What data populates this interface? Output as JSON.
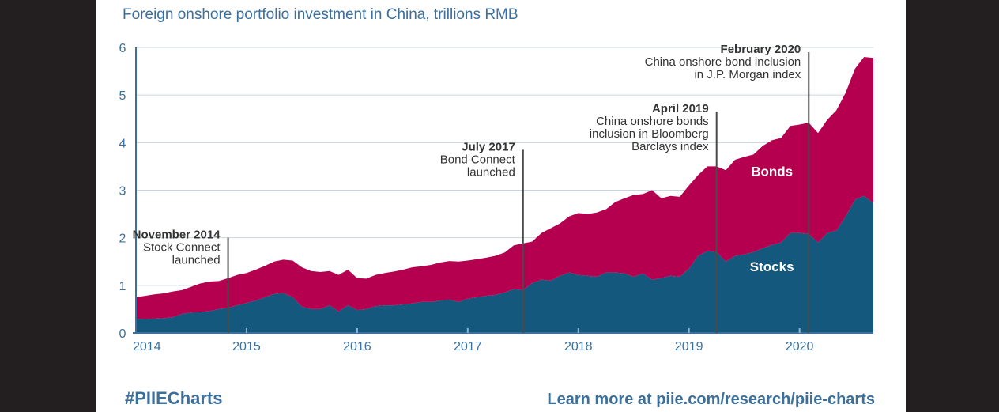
{
  "chart_data": {
    "type": "area",
    "title": "Foreign onshore portfolio investment in China, trillions RMB",
    "xlabel": "",
    "ylabel": "",
    "ylim": [
      0,
      6
    ],
    "yticks": [
      "0",
      "1",
      "2",
      "3",
      "4",
      "5",
      "6"
    ],
    "xticks": [
      "2014",
      "2015",
      "2016",
      "2017",
      "2018",
      "2019",
      "2020"
    ],
    "stacked": true,
    "x": [
      2014.0,
      2014.083,
      2014.167,
      2014.25,
      2014.333,
      2014.417,
      2014.5,
      2014.583,
      2014.667,
      2014.75,
      2014.833,
      2014.917,
      2015.0,
      2015.083,
      2015.167,
      2015.25,
      2015.333,
      2015.417,
      2015.5,
      2015.583,
      2015.667,
      2015.75,
      2015.833,
      2015.917,
      2016.0,
      2016.083,
      2016.167,
      2016.25,
      2016.333,
      2016.417,
      2016.5,
      2016.583,
      2016.667,
      2016.75,
      2016.833,
      2016.917,
      2017.0,
      2017.083,
      2017.167,
      2017.25,
      2017.333,
      2017.417,
      2017.5,
      2017.583,
      2017.667,
      2017.75,
      2017.833,
      2017.917,
      2018.0,
      2018.083,
      2018.167,
      2018.25,
      2018.333,
      2018.417,
      2018.5,
      2018.583,
      2018.667,
      2018.75,
      2018.833,
      2018.917,
      2019.0,
      2019.083,
      2019.167,
      2019.25,
      2019.333,
      2019.417,
      2019.5,
      2019.583,
      2019.667,
      2019.75,
      2019.833,
      2019.917,
      2020.0,
      2020.083,
      2020.167,
      2020.25,
      2020.333,
      2020.417,
      2020.5,
      2020.583,
      2020.667
    ],
    "series": [
      {
        "name": "Stocks",
        "color": "#14587e",
        "values": [
          0.3,
          0.29,
          0.3,
          0.31,
          0.33,
          0.4,
          0.43,
          0.44,
          0.46,
          0.5,
          0.53,
          0.58,
          0.63,
          0.68,
          0.75,
          0.82,
          0.84,
          0.75,
          0.55,
          0.5,
          0.5,
          0.58,
          0.45,
          0.58,
          0.48,
          0.5,
          0.56,
          0.58,
          0.58,
          0.6,
          0.62,
          0.65,
          0.65,
          0.68,
          0.7,
          0.65,
          0.72,
          0.75,
          0.78,
          0.8,
          0.85,
          0.92,
          0.9,
          1.05,
          1.12,
          1.1,
          1.2,
          1.27,
          1.22,
          1.2,
          1.18,
          1.27,
          1.27,
          1.25,
          1.18,
          1.25,
          1.12,
          1.15,
          1.2,
          1.18,
          1.35,
          1.62,
          1.72,
          1.7,
          1.5,
          1.62,
          1.65,
          1.7,
          1.78,
          1.85,
          1.9,
          2.1,
          2.1,
          2.08,
          1.9,
          2.1,
          2.15,
          2.45,
          2.8,
          2.88,
          2.73
        ]
      },
      {
        "name": "Bonds",
        "color": "#b50050",
        "values": [
          0.45,
          0.49,
          0.51,
          0.52,
          0.54,
          0.5,
          0.54,
          0.6,
          0.62,
          0.59,
          0.62,
          0.64,
          0.63,
          0.65,
          0.66,
          0.68,
          0.7,
          0.77,
          0.83,
          0.8,
          0.78,
          0.72,
          0.77,
          0.75,
          0.67,
          0.64,
          0.66,
          0.68,
          0.71,
          0.73,
          0.76,
          0.75,
          0.78,
          0.8,
          0.81,
          0.85,
          0.8,
          0.8,
          0.8,
          0.82,
          0.84,
          0.92,
          0.98,
          0.87,
          0.98,
          1.1,
          1.1,
          1.18,
          1.3,
          1.3,
          1.35,
          1.33,
          1.48,
          1.58,
          1.72,
          1.67,
          1.88,
          1.68,
          1.68,
          1.68,
          1.75,
          1.7,
          1.78,
          1.8,
          1.92,
          2.02,
          2.05,
          2.05,
          2.15,
          2.2,
          2.2,
          2.25,
          2.28,
          2.34,
          2.3,
          2.38,
          2.53,
          2.6,
          2.75,
          2.92,
          3.05
        ]
      }
    ],
    "series_labels": [
      {
        "text": "Stocks",
        "x": 2019.75,
        "y": 1.3
      },
      {
        "text": "Bonds",
        "x": 2019.75,
        "y": 3.3
      }
    ],
    "annotations": [
      {
        "x": 2014.833,
        "y_top": 2.0,
        "title": "November 2014",
        "lines": [
          "Stock Connect",
          "launched"
        ]
      },
      {
        "x": 2017.5,
        "y_top": 3.85,
        "title": "July 2017",
        "lines": [
          "Bond Connect",
          "launched"
        ]
      },
      {
        "x": 2019.25,
        "y_top": 4.65,
        "title": "April 2019",
        "lines": [
          "China onshore bonds",
          "inclusion in Bloomberg",
          "Barclays index"
        ]
      },
      {
        "x": 2020.083,
        "y_top": 5.9,
        "title": "February 2020",
        "lines": [
          "China onshore bond inclusion",
          "in J.P. Morgan index"
        ]
      }
    ],
    "grid": true
  },
  "footer": {
    "hashtag": "#PIIECharts",
    "link": "Learn more at piie.com/research/piie-charts"
  }
}
